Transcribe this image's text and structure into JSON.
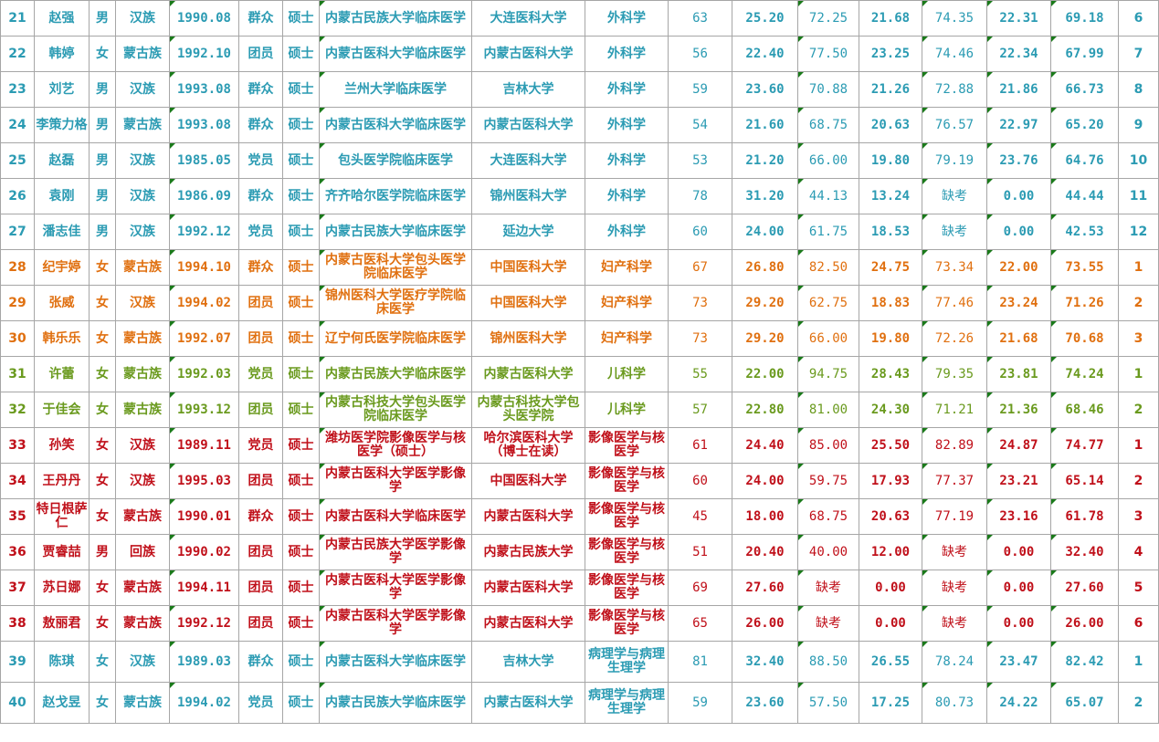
{
  "rows": [
    {
      "no": "21",
      "name": "赵强",
      "sex": "男",
      "eth": "汉族",
      "birth": "1990.08",
      "pol": "群众",
      "deg": "硕士",
      "school": "内蒙古民族大学临床医学",
      "univ": "大连医科大学",
      "major": "外科学",
      "s1": "63",
      "s2": "25.20",
      "s3": "72.25",
      "s4": "21.68",
      "s5": "74.35",
      "s6": "22.31",
      "total": "69.18",
      "rank": "6",
      "color": "teal"
    },
    {
      "no": "22",
      "name": "韩婷",
      "sex": "女",
      "eth": "蒙古族",
      "birth": "1992.10",
      "pol": "团员",
      "deg": "硕士",
      "school": "内蒙古医科大学临床医学",
      "univ": "内蒙古医科大学",
      "major": "外科学",
      "s1": "56",
      "s2": "22.40",
      "s3": "77.50",
      "s4": "23.25",
      "s5": "74.46",
      "s6": "22.34",
      "total": "67.99",
      "rank": "7",
      "color": "teal"
    },
    {
      "no": "23",
      "name": "刘艺",
      "sex": "男",
      "eth": "汉族",
      "birth": "1993.08",
      "pol": "群众",
      "deg": "硕士",
      "school": "兰州大学临床医学",
      "univ": "吉林大学",
      "major": "外科学",
      "s1": "59",
      "s2": "23.60",
      "s3": "70.88",
      "s4": "21.26",
      "s5": "72.88",
      "s6": "21.86",
      "total": "66.73",
      "rank": "8",
      "color": "teal"
    },
    {
      "no": "24",
      "name": "李策力格",
      "sex": "男",
      "eth": "蒙古族",
      "birth": "1993.08",
      "pol": "群众",
      "deg": "硕士",
      "school": "内蒙古医科大学临床医学",
      "univ": "内蒙古医科大学",
      "major": "外科学",
      "s1": "54",
      "s2": "21.60",
      "s3": "68.75",
      "s4": "20.63",
      "s5": "76.57",
      "s6": "22.97",
      "total": "65.20",
      "rank": "9",
      "color": "teal"
    },
    {
      "no": "25",
      "name": "赵磊",
      "sex": "男",
      "eth": "汉族",
      "birth": "1985.05",
      "pol": "党员",
      "deg": "硕士",
      "school": "包头医学院临床医学",
      "univ": "大连医科大学",
      "major": "外科学",
      "s1": "53",
      "s2": "21.20",
      "s3": "66.00",
      "s4": "19.80",
      "s5": "79.19",
      "s6": "23.76",
      "total": "64.76",
      "rank": "10",
      "color": "teal"
    },
    {
      "no": "26",
      "name": "袁刚",
      "sex": "男",
      "eth": "汉族",
      "birth": "1986.09",
      "pol": "群众",
      "deg": "硕士",
      "school": "齐齐哈尔医学院临床医学",
      "univ": "锦州医科大学",
      "major": "外科学",
      "s1": "78",
      "s2": "31.20",
      "s3": "44.13",
      "s4": "13.24",
      "s5": "缺考",
      "s6": "0.00",
      "total": "44.44",
      "rank": "11",
      "color": "teal"
    },
    {
      "no": "27",
      "name": "潘志佳",
      "sex": "男",
      "eth": "汉族",
      "birth": "1992.12",
      "pol": "党员",
      "deg": "硕士",
      "school": "内蒙古民族大学临床医学",
      "univ": "延边大学",
      "major": "外科学",
      "s1": "60",
      "s2": "24.00",
      "s3": "61.75",
      "s4": "18.53",
      "s5": "缺考",
      "s6": "0.00",
      "total": "42.53",
      "rank": "12",
      "color": "teal"
    },
    {
      "no": "28",
      "name": "纪宇婷",
      "sex": "女",
      "eth": "蒙古族",
      "birth": "1994.10",
      "pol": "群众",
      "deg": "硕士",
      "school": "内蒙古医科大学包头医学院临床医学",
      "univ": "中国医科大学",
      "major": "妇产科学",
      "s1": "67",
      "s2": "26.80",
      "s3": "82.50",
      "s4": "24.75",
      "s5": "73.34",
      "s6": "22.00",
      "total": "73.55",
      "rank": "1",
      "color": "orange"
    },
    {
      "no": "29",
      "name": "张威",
      "sex": "女",
      "eth": "汉族",
      "birth": "1994.02",
      "pol": "团员",
      "deg": "硕士",
      "school": "锦州医科大学医疗学院临床医学",
      "univ": "中国医科大学",
      "major": "妇产科学",
      "s1": "73",
      "s2": "29.20",
      "s3": "62.75",
      "s4": "18.83",
      "s5": "77.46",
      "s6": "23.24",
      "total": "71.26",
      "rank": "2",
      "color": "orange"
    },
    {
      "no": "30",
      "name": "韩乐乐",
      "sex": "女",
      "eth": "蒙古族",
      "birth": "1992.07",
      "pol": "团员",
      "deg": "硕士",
      "school": "辽宁何氏医学院临床医学",
      "univ": "锦州医科大学",
      "major": "妇产科学",
      "s1": "73",
      "s2": "29.20",
      "s3": "66.00",
      "s4": "19.80",
      "s5": "72.26",
      "s6": "21.68",
      "total": "70.68",
      "rank": "3",
      "color": "orange"
    },
    {
      "no": "31",
      "name": "许蕾",
      "sex": "女",
      "eth": "蒙古族",
      "birth": "1992.03",
      "pol": "党员",
      "deg": "硕士",
      "school": "内蒙古民族大学临床医学",
      "univ": "内蒙古医科大学",
      "major": "儿科学",
      "s1": "55",
      "s2": "22.00",
      "s3": "94.75",
      "s4": "28.43",
      "s5": "79.35",
      "s6": "23.81",
      "total": "74.24",
      "rank": "1",
      "color": "green"
    },
    {
      "no": "32",
      "name": "于佳会",
      "sex": "女",
      "eth": "蒙古族",
      "birth": "1993.12",
      "pol": "团员",
      "deg": "硕士",
      "school": "内蒙古科技大学包头医学院临床医学",
      "univ": "内蒙古科技大学包头医学院",
      "major": "儿科学",
      "s1": "57",
      "s2": "22.80",
      "s3": "81.00",
      "s4": "24.30",
      "s5": "71.21",
      "s6": "21.36",
      "total": "68.46",
      "rank": "2",
      "color": "green"
    },
    {
      "no": "33",
      "name": "孙笑",
      "sex": "女",
      "eth": "汉族",
      "birth": "1989.11",
      "pol": "党员",
      "deg": "硕士",
      "school": "潍坊医学院影像医学与核医学（硕士）",
      "univ": "哈尔滨医科大学（博士在读）",
      "major": "影像医学与核医学",
      "s1": "61",
      "s2": "24.40",
      "s3": "85.00",
      "s4": "25.50",
      "s5": "82.89",
      "s6": "24.87",
      "total": "74.77",
      "rank": "1",
      "color": "red"
    },
    {
      "no": "34",
      "name": "王丹丹",
      "sex": "女",
      "eth": "汉族",
      "birth": "1995.03",
      "pol": "团员",
      "deg": "硕士",
      "school": "内蒙古医科大学医学影像学",
      "univ": "中国医科大学",
      "major": "影像医学与核医学",
      "s1": "60",
      "s2": "24.00",
      "s3": "59.75",
      "s4": "17.93",
      "s5": "77.37",
      "s6": "23.21",
      "total": "65.14",
      "rank": "2",
      "color": "red"
    },
    {
      "no": "35",
      "name": "特日根萨仁",
      "sex": "女",
      "eth": "蒙古族",
      "birth": "1990.01",
      "pol": "群众",
      "deg": "硕士",
      "school": "内蒙古医科大学临床医学",
      "univ": "内蒙古医科大学",
      "major": "影像医学与核医学",
      "s1": "45",
      "s2": "18.00",
      "s3": "68.75",
      "s4": "20.63",
      "s5": "77.19",
      "s6": "23.16",
      "total": "61.78",
      "rank": "3",
      "color": "red"
    },
    {
      "no": "36",
      "name": "贾睿喆",
      "sex": "男",
      "eth": "回族",
      "birth": "1990.02",
      "pol": "团员",
      "deg": "硕士",
      "school": "内蒙古民族大学医学影像学",
      "univ": "内蒙古民族大学",
      "major": "影像医学与核医学",
      "s1": "51",
      "s2": "20.40",
      "s3": "40.00",
      "s4": "12.00",
      "s5": "缺考",
      "s6": "0.00",
      "total": "32.40",
      "rank": "4",
      "color": "red"
    },
    {
      "no": "37",
      "name": "苏日娜",
      "sex": "女",
      "eth": "蒙古族",
      "birth": "1994.11",
      "pol": "团员",
      "deg": "硕士",
      "school": "内蒙古医科大学医学影像学",
      "univ": "内蒙古医科大学",
      "major": "影像医学与核医学",
      "s1": "69",
      "s2": "27.60",
      "s3": "缺考",
      "s4": "0.00",
      "s5": "缺考",
      "s6": "0.00",
      "total": "27.60",
      "rank": "5",
      "color": "red"
    },
    {
      "no": "38",
      "name": "敖丽君",
      "sex": "女",
      "eth": "蒙古族",
      "birth": "1992.12",
      "pol": "团员",
      "deg": "硕士",
      "school": "内蒙古医科大学医学影像学",
      "univ": "内蒙古医科大学",
      "major": "影像医学与核医学",
      "s1": "65",
      "s2": "26.00",
      "s3": "缺考",
      "s4": "0.00",
      "s5": "缺考",
      "s6": "0.00",
      "total": "26.00",
      "rank": "6",
      "color": "red"
    },
    {
      "no": "39",
      "name": "陈琪",
      "sex": "女",
      "eth": "汉族",
      "birth": "1989.03",
      "pol": "群众",
      "deg": "硕士",
      "school": "内蒙古医科大学临床医学",
      "univ": "吉林大学",
      "major": "病理学与病理生理学",
      "s1": "81",
      "s2": "32.40",
      "s3": "88.50",
      "s4": "26.55",
      "s5": "78.24",
      "s6": "23.47",
      "total": "82.42",
      "rank": "1",
      "color": "teal"
    },
    {
      "no": "40",
      "name": "赵戈昱",
      "sex": "女",
      "eth": "蒙古族",
      "birth": "1994.02",
      "pol": "党员",
      "deg": "硕士",
      "school": "内蒙古民族大学临床医学",
      "univ": "内蒙古医科大学",
      "major": "病理学与病理生理学",
      "s1": "59",
      "s2": "23.60",
      "s3": "57.50",
      "s4": "17.25",
      "s5": "80.73",
      "s6": "24.22",
      "total": "65.07",
      "rank": "2",
      "color": "teal"
    }
  ],
  "colors": {
    "teal": "#2b9bb3",
    "orange": "#e07010",
    "green": "#6a9a1e",
    "red": "#c0101a",
    "border": "#a6a6a6"
  }
}
